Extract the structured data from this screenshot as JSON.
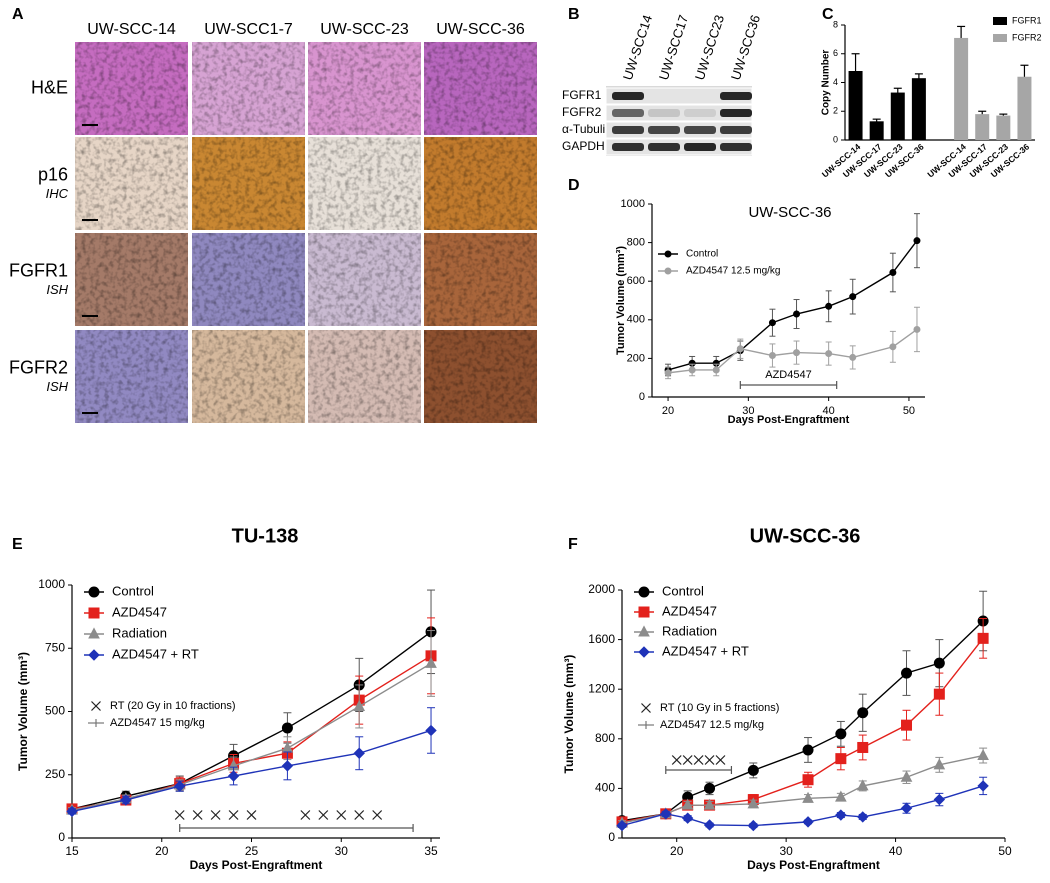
{
  "panel_labels": [
    "A",
    "B",
    "C",
    "D",
    "E",
    "F"
  ],
  "panel_a": {
    "columns": [
      "UW-SCC-14",
      "UW-SCC1-7",
      "UW-SCC-23",
      "UW-SCC-36"
    ],
    "rows": [
      {
        "label": "H&E"
      },
      {
        "label": "p16",
        "sublabel": "IHC"
      },
      {
        "label": "FGFR1",
        "sublabel": "ISH"
      },
      {
        "label": "FGFR2",
        "sublabel": "ISH"
      }
    ]
  },
  "panel_b": {
    "columns": [
      "UW-SCC14",
      "UW-SCC17",
      "UW-SCC23",
      "UW-SCC36"
    ],
    "rows": [
      "FGFR1",
      "FGFR2",
      "α-Tubulin",
      "GAPDH"
    ]
  },
  "chart_data": [
    {
      "type": "bar",
      "ylabel": "Copy Number",
      "categories": [
        "UW-SCC-14",
        "UW-SCC-17",
        "UW-SCC-23",
        "UW-SCC-36",
        "UW-SCC-14",
        "UW-SCC-17",
        "UW-SCC-23",
        "UW-SCC-36"
      ],
      "series": [
        {
          "name": "FGFR1",
          "color": "#000000",
          "values": [
            4.8,
            1.3,
            3.3,
            4.3,
            null,
            null,
            null,
            null
          ],
          "errors": [
            1.2,
            0.15,
            0.3,
            0.3,
            null,
            null,
            null,
            null
          ]
        },
        {
          "name": "FGFR2",
          "color": "#a6a6a6",
          "values": [
            null,
            null,
            null,
            null,
            7.1,
            1.8,
            1.7,
            4.4
          ],
          "errors": [
            null,
            null,
            null,
            null,
            0.8,
            0.2,
            0.1,
            0.8
          ]
        }
      ],
      "ylim": [
        0,
        8
      ],
      "yticks": [
        0,
        2,
        4,
        6,
        8
      ]
    },
    {
      "type": "line",
      "title": "UW-SCC-36",
      "xlabel": "Days Post-Engraftment",
      "ylabel": "Tumor Volume (mm³)",
      "x": [
        20,
        23,
        26,
        29,
        33,
        36,
        40,
        43,
        48,
        51
      ],
      "series": [
        {
          "name": "Control",
          "color": "#000000",
          "marker": "circle",
          "values": [
            140,
            175,
            175,
            240,
            385,
            430,
            470,
            520,
            645,
            810
          ],
          "errors": [
            30,
            35,
            35,
            50,
            70,
            75,
            80,
            90,
            100,
            140
          ]
        },
        {
          "name": "AZD4547 12.5 mg/kg",
          "color": "#a0a0a0",
          "marker": "circle",
          "values": [
            125,
            140,
            140,
            250,
            215,
            230,
            225,
            205,
            260,
            350
          ],
          "errors": [
            30,
            30,
            30,
            50,
            60,
            60,
            60,
            60,
            80,
            115
          ]
        }
      ],
      "xlim": [
        18,
        52
      ],
      "xticks": [
        20,
        30,
        40,
        50
      ],
      "ylim": [
        0,
        1000
      ],
      "yticks": [
        0,
        200,
        400,
        600,
        800,
        1000
      ],
      "drug_span": [
        29,
        41
      ],
      "drug_label": "AZD4547"
    },
    {
      "type": "line",
      "title": "TU-138",
      "xlabel": "Days Post-Engraftment",
      "ylabel": "Tumor Volume (mm³)",
      "x": [
        15,
        18,
        21,
        24,
        27,
        31,
        35
      ],
      "series": [
        {
          "name": "Control",
          "color": "#000000",
          "marker": "circle",
          "values": [
            115,
            165,
            215,
            325,
            435,
            605,
            815
          ],
          "errors": [
            12,
            20,
            30,
            45,
            60,
            105,
            165
          ]
        },
        {
          "name": "AZD4547",
          "color": "#e3211c",
          "marker": "square",
          "values": [
            115,
            150,
            215,
            295,
            335,
            545,
            720
          ],
          "errors": [
            10,
            15,
            25,
            35,
            45,
            95,
            150
          ]
        },
        {
          "name": "Radiation",
          "color": "#8c8c8c",
          "marker": "triangle",
          "values": [
            110,
            155,
            210,
            285,
            355,
            520,
            690
          ],
          "errors": [
            10,
            15,
            20,
            35,
            45,
            85,
            130
          ]
        },
        {
          "name": "AZD4547 + RT",
          "color": "#1f33b8",
          "marker": "diamond",
          "values": [
            105,
            150,
            205,
            245,
            285,
            335,
            425
          ],
          "errors": [
            10,
            15,
            20,
            35,
            55,
            65,
            90
          ]
        }
      ],
      "xlim": [
        15,
        35.5
      ],
      "xticks": [
        15,
        20,
        25,
        30,
        35
      ],
      "ylim": [
        0,
        1000
      ],
      "yticks": [
        0,
        250,
        500,
        750,
        1000
      ],
      "rt_label": "RT (20 Gy in 10 fractions)",
      "drug_label": "AZD4547 15 mg/kg",
      "rt_days": [
        21,
        22,
        23,
        24,
        25,
        28,
        29,
        30,
        31,
        32
      ],
      "drug_span": [
        21,
        34
      ]
    },
    {
      "type": "line",
      "title": "UW-SCC-36",
      "xlabel": "Days Post-Engraftment",
      "ylabel": "Tumor Volume (mm³)",
      "x": [
        15,
        19,
        21,
        23,
        27,
        32,
        35,
        37,
        41,
        44,
        48
      ],
      "series": [
        {
          "name": "Control",
          "color": "#000000",
          "marker": "circle",
          "values": [
            140,
            195,
            330,
            400,
            545,
            710,
            840,
            1010,
            1330,
            1410,
            1750
          ],
          "errors": [
            20,
            20,
            50,
            50,
            60,
            100,
            100,
            150,
            180,
            190,
            240
          ]
        },
        {
          "name": "AZD4547",
          "color": "#e3211c",
          "marker": "square",
          "values": [
            130,
            195,
            265,
            265,
            310,
            470,
            640,
            730,
            910,
            1160,
            1610
          ],
          "errors": [
            20,
            20,
            30,
            30,
            40,
            60,
            90,
            100,
            120,
            170,
            160
          ]
        },
        {
          "name": "Radiation",
          "color": "#8c8c8c",
          "marker": "triangle",
          "values": [
            120,
            195,
            265,
            265,
            275,
            320,
            330,
            420,
            490,
            590,
            665
          ],
          "errors": [
            20,
            20,
            30,
            30,
            30,
            30,
            30,
            40,
            50,
            60,
            60
          ]
        },
        {
          "name": "AZD4547 + RT",
          "color": "#1f33b8",
          "marker": "diamond",
          "values": [
            100,
            195,
            160,
            105,
            100,
            130,
            185,
            170,
            240,
            310,
            420
          ],
          "errors": [
            15,
            20,
            20,
            15,
            15,
            15,
            20,
            20,
            40,
            50,
            70
          ]
        }
      ],
      "xlim": [
        15,
        50
      ],
      "xticks": [
        20,
        30,
        40,
        50
      ],
      "ylim": [
        0,
        2000
      ],
      "yticks": [
        0,
        400,
        800,
        1200,
        1600,
        2000
      ],
      "rt_label": "RT (10 Gy in 5 fractions)",
      "drug_label": "AZD4547 12.5 mg/kg",
      "rt_days": [
        20,
        21,
        22,
        23,
        24
      ],
      "drug_span": [
        19,
        25
      ]
    }
  ]
}
